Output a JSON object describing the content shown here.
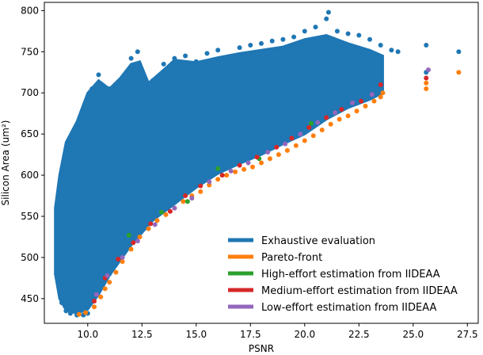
{
  "chart_data": {
    "type": "scatter",
    "title": "",
    "xlabel": "PSNR",
    "ylabel": "Silicon Area (um²)",
    "xlim": [
      8.0,
      28.0
    ],
    "ylim": [
      420,
      810
    ],
    "x_ticks": [
      10.0,
      12.5,
      15.0,
      17.5,
      20.0,
      22.5,
      25.0,
      27.5
    ],
    "x_tick_labels": [
      "10.0",
      "12.5",
      "15.0",
      "17.5",
      "20.0",
      "22.5",
      "25.0",
      "27.5"
    ],
    "y_ticks": [
      450,
      500,
      550,
      600,
      650,
      700,
      750,
      800
    ],
    "y_tick_labels": [
      "450",
      "500",
      "550",
      "600",
      "650",
      "700",
      "750",
      "800"
    ],
    "grid": false,
    "legend_position": "bottom-right",
    "series": [
      {
        "name": "Exhaustive evaluation",
        "color": "#1f77b4",
        "description_points": [
          [
            8.8,
            445
          ],
          [
            9.0,
            435
          ],
          [
            9.2,
            432
          ],
          [
            9.5,
            430
          ],
          [
            9.8,
            430
          ],
          [
            10.0,
            432
          ],
          [
            8.7,
            560
          ],
          [
            9.0,
            600
          ],
          [
            9.3,
            640
          ],
          [
            9.8,
            665
          ],
          [
            10.2,
            705
          ],
          [
            10.5,
            722
          ],
          [
            11.0,
            705
          ],
          [
            11.5,
            715
          ],
          [
            12.0,
            742
          ],
          [
            12.3,
            750
          ],
          [
            13.0,
            715
          ],
          [
            13.5,
            735
          ],
          [
            14.0,
            742
          ],
          [
            14.5,
            745
          ],
          [
            15.0,
            738
          ],
          [
            15.5,
            748
          ],
          [
            16.0,
            752
          ],
          [
            16.5,
            740
          ],
          [
            17.0,
            755
          ],
          [
            17.5,
            758
          ],
          [
            18.0,
            760
          ],
          [
            18.5,
            763
          ],
          [
            19.0,
            765
          ],
          [
            19.5,
            768
          ],
          [
            20.0,
            775
          ],
          [
            20.5,
            780
          ],
          [
            21.0,
            790
          ],
          [
            21.1,
            798
          ],
          [
            21.5,
            775
          ],
          [
            22.0,
            772
          ],
          [
            22.5,
            770
          ],
          [
            23.0,
            765
          ],
          [
            23.5,
            758
          ],
          [
            24.0,
            752
          ],
          [
            24.3,
            750
          ],
          [
            25.6,
            758
          ],
          [
            25.6,
            725
          ],
          [
            27.1,
            750
          ],
          [
            10.5,
            460
          ],
          [
            11.0,
            480
          ],
          [
            11.5,
            500
          ],
          [
            12.0,
            520
          ],
          [
            12.5,
            535
          ],
          [
            13.0,
            548
          ],
          [
            13.5,
            560
          ],
          [
            14.0,
            570
          ],
          [
            14.5,
            580
          ],
          [
            15.0,
            590
          ],
          [
            15.5,
            600
          ],
          [
            16.0,
            608
          ],
          [
            16.5,
            614
          ],
          [
            17.0,
            620
          ],
          [
            17.5,
            626
          ],
          [
            18.0,
            632
          ],
          [
            18.5,
            638
          ],
          [
            19.0,
            644
          ],
          [
            19.5,
            650
          ],
          [
            20.0,
            656
          ],
          [
            20.5,
            664
          ],
          [
            21.0,
            672
          ],
          [
            21.5,
            678
          ],
          [
            22.0,
            684
          ],
          [
            22.5,
            690
          ],
          [
            23.0,
            695
          ],
          [
            23.5,
            700
          ]
        ]
      },
      {
        "name": "Pareto-front",
        "color": "#ff7f0e",
        "points": [
          [
            9.6,
            431
          ],
          [
            9.9,
            433
          ],
          [
            10.3,
            440
          ],
          [
            10.6,
            452
          ],
          [
            10.8,
            462
          ],
          [
            11.0,
            470
          ],
          [
            11.3,
            482
          ],
          [
            11.6,
            495
          ],
          [
            12.0,
            510
          ],
          [
            12.4,
            525
          ],
          [
            12.8,
            535
          ],
          [
            13.2,
            545
          ],
          [
            13.6,
            552
          ],
          [
            14.0,
            560
          ],
          [
            14.4,
            568
          ],
          [
            14.8,
            575
          ],
          [
            15.2,
            580
          ],
          [
            15.6,
            588
          ],
          [
            16.0,
            595
          ],
          [
            16.4,
            600
          ],
          [
            16.8,
            604
          ],
          [
            17.2,
            607
          ],
          [
            17.6,
            610
          ],
          [
            18.0,
            615
          ],
          [
            18.4,
            620
          ],
          [
            18.8,
            625
          ],
          [
            19.2,
            630
          ],
          [
            19.6,
            636
          ],
          [
            20.0,
            642
          ],
          [
            20.4,
            648
          ],
          [
            20.8,
            655
          ],
          [
            21.2,
            662
          ],
          [
            21.6,
            668
          ],
          [
            22.0,
            672
          ],
          [
            22.4,
            678
          ],
          [
            22.8,
            684
          ],
          [
            23.2,
            690
          ],
          [
            23.5,
            695
          ],
          [
            23.6,
            700
          ],
          [
            25.6,
            705
          ],
          [
            25.6,
            712
          ],
          [
            27.1,
            725
          ]
        ]
      },
      {
        "name": "High-effort estimation from IIDEAA",
        "color": "#2ca02c",
        "points": [
          [
            11.9,
            527
          ],
          [
            13.4,
            555
          ],
          [
            14.6,
            568
          ],
          [
            16.0,
            608
          ],
          [
            17.9,
            620
          ],
          [
            20.3,
            663
          ]
        ]
      },
      {
        "name": "Medium-effort estimation from IIDEAA",
        "color": "#d62728",
        "points": [
          [
            10.3,
            447
          ],
          [
            10.8,
            475
          ],
          [
            11.4,
            498
          ],
          [
            12.1,
            518
          ],
          [
            12.9,
            541
          ],
          [
            13.8,
            556
          ],
          [
            14.5,
            575
          ],
          [
            15.2,
            587
          ],
          [
            16.2,
            600
          ],
          [
            17.0,
            612
          ],
          [
            17.8,
            622
          ],
          [
            18.7,
            634
          ],
          [
            19.4,
            645
          ],
          [
            20.2,
            658
          ],
          [
            21.0,
            670
          ],
          [
            21.7,
            680
          ],
          [
            22.6,
            690
          ],
          [
            23.5,
            710
          ],
          [
            25.6,
            718
          ]
        ]
      },
      {
        "name": "Low-effort estimation from IIDEAA",
        "color": "#9467bd",
        "points": [
          [
            10.4,
            455
          ],
          [
            10.9,
            478
          ],
          [
            11.6,
            500
          ],
          [
            12.3,
            520
          ],
          [
            13.1,
            540
          ],
          [
            14.0,
            560
          ],
          [
            14.8,
            572
          ],
          [
            15.6,
            592
          ],
          [
            16.6,
            605
          ],
          [
            17.4,
            615
          ],
          [
            18.3,
            628
          ],
          [
            19.1,
            638
          ],
          [
            19.8,
            650
          ],
          [
            20.6,
            664
          ],
          [
            21.4,
            676
          ],
          [
            22.2,
            688
          ],
          [
            23.1,
            698
          ],
          [
            25.7,
            728
          ]
        ]
      }
    ]
  }
}
